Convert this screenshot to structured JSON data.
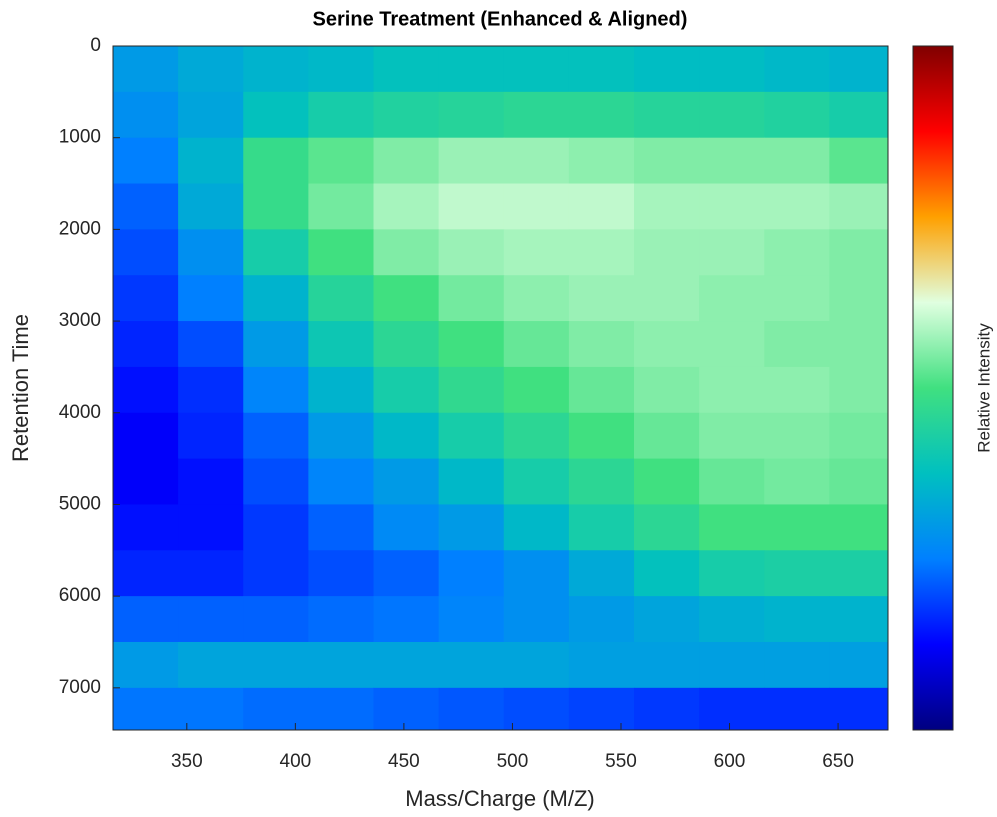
{
  "chart_data": {
    "type": "heatmap",
    "title": "Serine Treatment (Enhanced & Aligned)",
    "x_label": "Mass/Charge (M/Z)",
    "y_label": "Retention Time",
    "colorbar_label": "Relative Intensity",
    "xlim": [
      316,
      673
    ],
    "ylim": [
      0,
      7460
    ],
    "y_reversed": true,
    "xticks": [
      350,
      400,
      450,
      500,
      550,
      600,
      650
    ],
    "yticks": [
      0,
      1000,
      2000,
      3000,
      4000,
      5000,
      6000,
      7000
    ],
    "xbins": [
      316,
      346,
      376,
      406,
      436,
      466,
      496,
      526,
      556,
      586,
      616,
      646,
      673
    ],
    "ybins": [
      0,
      500,
      1000,
      1500,
      2000,
      2500,
      3000,
      3500,
      4000,
      4500,
      5000,
      5500,
      6000,
      6500,
      7000,
      7460
    ],
    "clim": [
      0,
      1
    ],
    "colormap": [
      "#000080",
      "#0000ff",
      "#0080ff",
      "#00c0c0",
      "#40e080",
      "#e0ffe0",
      "#ffa000",
      "#ff0000",
      "#800000"
    ],
    "z": [
      [
        0.3,
        0.33,
        0.35,
        0.36,
        0.38,
        0.38,
        0.38,
        0.38,
        0.37,
        0.37,
        0.36,
        0.35
      ],
      [
        0.28,
        0.32,
        0.38,
        0.42,
        0.44,
        0.45,
        0.46,
        0.46,
        0.45,
        0.45,
        0.44,
        0.42
      ],
      [
        0.25,
        0.35,
        0.48,
        0.52,
        0.55,
        0.57,
        0.57,
        0.56,
        0.55,
        0.55,
        0.55,
        0.52
      ],
      [
        0.22,
        0.33,
        0.48,
        0.54,
        0.58,
        0.6,
        0.6,
        0.6,
        0.58,
        0.58,
        0.58,
        0.57
      ],
      [
        0.2,
        0.28,
        0.42,
        0.5,
        0.55,
        0.57,
        0.58,
        0.58,
        0.57,
        0.57,
        0.56,
        0.55
      ],
      [
        0.18,
        0.25,
        0.35,
        0.45,
        0.5,
        0.54,
        0.56,
        0.57,
        0.57,
        0.56,
        0.56,
        0.55
      ],
      [
        0.16,
        0.2,
        0.3,
        0.4,
        0.46,
        0.5,
        0.53,
        0.55,
        0.56,
        0.56,
        0.55,
        0.55
      ],
      [
        0.14,
        0.17,
        0.26,
        0.35,
        0.42,
        0.47,
        0.5,
        0.53,
        0.55,
        0.56,
        0.56,
        0.55
      ],
      [
        0.12,
        0.16,
        0.22,
        0.3,
        0.36,
        0.42,
        0.46,
        0.5,
        0.53,
        0.55,
        0.55,
        0.54
      ],
      [
        0.12,
        0.14,
        0.2,
        0.26,
        0.3,
        0.36,
        0.42,
        0.46,
        0.5,
        0.53,
        0.54,
        0.53
      ],
      [
        0.14,
        0.14,
        0.18,
        0.22,
        0.27,
        0.3,
        0.36,
        0.42,
        0.46,
        0.5,
        0.5,
        0.5
      ],
      [
        0.16,
        0.16,
        0.18,
        0.2,
        0.22,
        0.25,
        0.28,
        0.33,
        0.38,
        0.42,
        0.43,
        0.43
      ],
      [
        0.22,
        0.22,
        0.22,
        0.23,
        0.24,
        0.26,
        0.28,
        0.3,
        0.32,
        0.34,
        0.35,
        0.35
      ],
      [
        0.3,
        0.32,
        0.32,
        0.32,
        0.32,
        0.32,
        0.32,
        0.31,
        0.31,
        0.31,
        0.31,
        0.31
      ],
      [
        0.24,
        0.24,
        0.23,
        0.23,
        0.22,
        0.21,
        0.2,
        0.19,
        0.18,
        0.17,
        0.17,
        0.17
      ]
    ]
  }
}
